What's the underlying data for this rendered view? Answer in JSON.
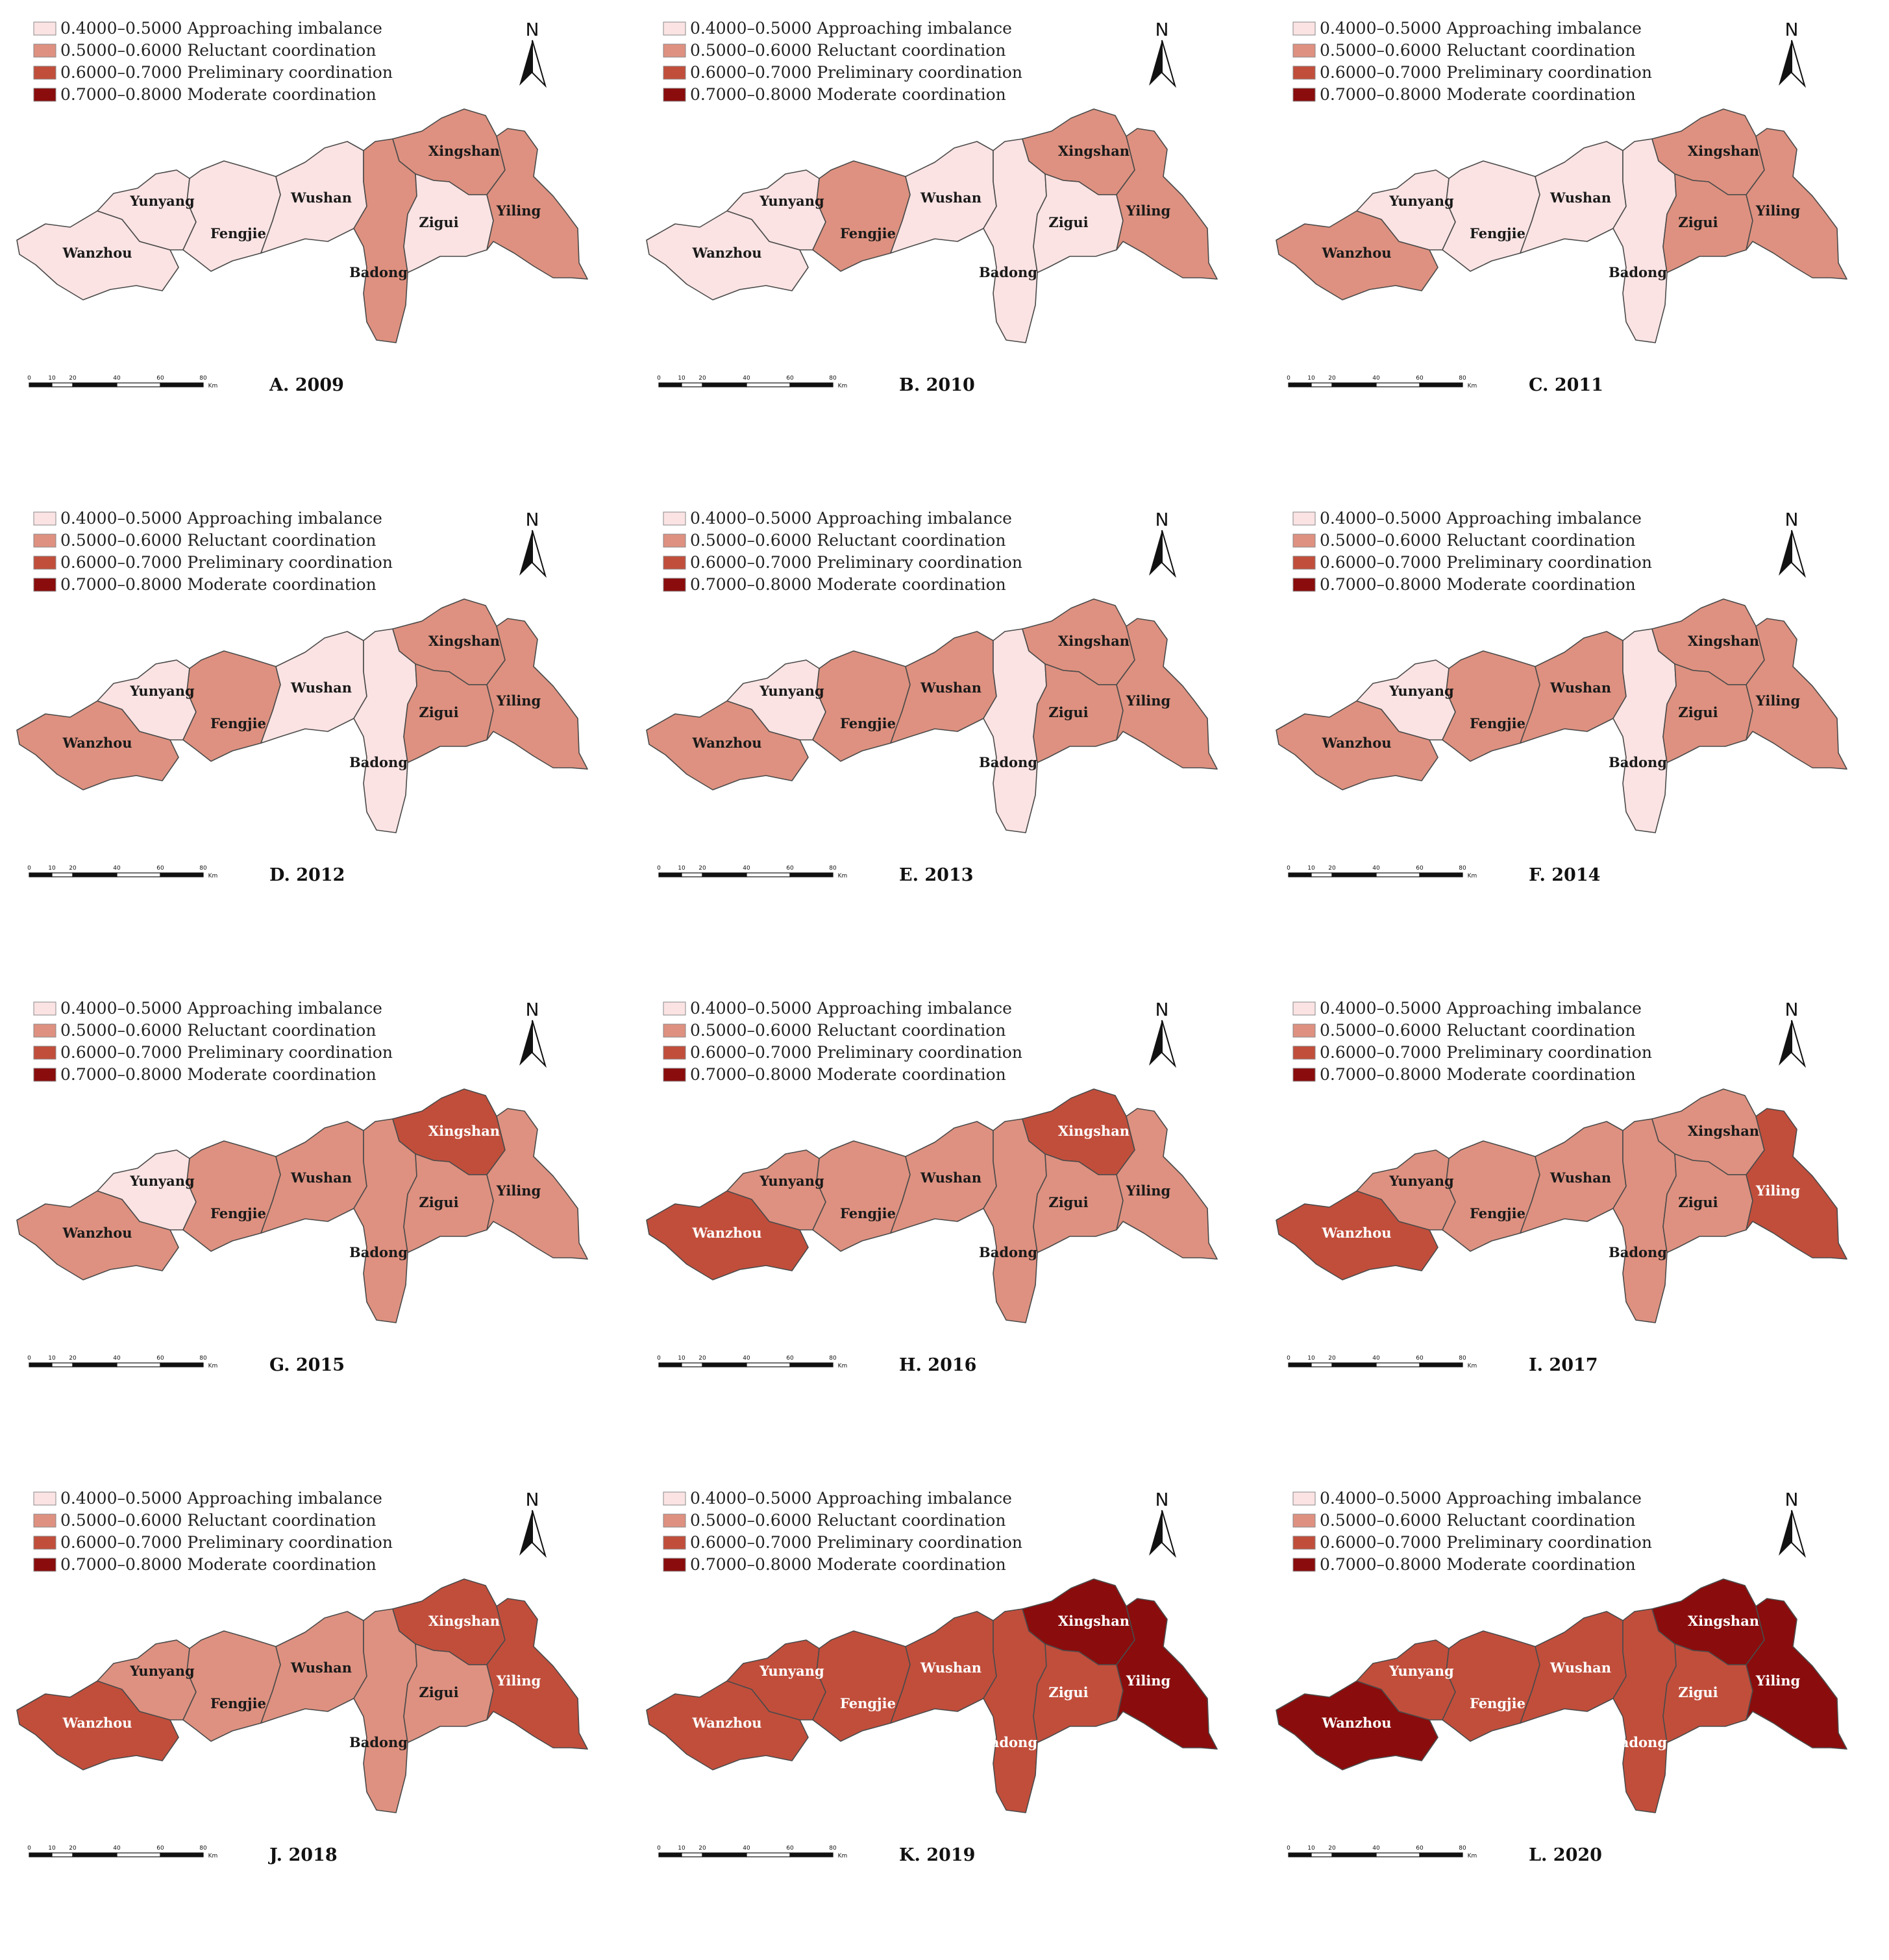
{
  "legend": [
    {
      "range": "0.4000–0.5000",
      "label": "Approaching imbalance",
      "color": "#fbe3e3"
    },
    {
      "range": "0.5000–0.6000",
      "label": "Reluctant coordination",
      "color": "#de9180"
    },
    {
      "range": "0.6000–0.7000",
      "label": "Preliminary coordination",
      "color": "#c14e3b"
    },
    {
      "range": "0.7000–0.8000",
      "label": "Moderate coordination",
      "color": "#8a0c0c"
    }
  ],
  "north_label": "N",
  "scale": {
    "ticks": [
      "0",
      "10",
      "20",
      "40",
      "60",
      "80"
    ],
    "unit": "Km"
  },
  "districts": [
    "Wanzhou",
    "Yunyang",
    "Fengjie",
    "Wushan",
    "Badong",
    "Xingshan",
    "Zigui",
    "Yiling"
  ],
  "panels": [
    {
      "title": "A. 2009",
      "levels": {
        "Wanzhou": 1,
        "Yunyang": 1,
        "Fengjie": 1,
        "Wushan": 1,
        "Badong": 2,
        "Xingshan": 2,
        "Zigui": 1,
        "Yiling": 2
      }
    },
    {
      "title": "B. 2010",
      "levels": {
        "Wanzhou": 1,
        "Yunyang": 1,
        "Fengjie": 2,
        "Wushan": 1,
        "Badong": 1,
        "Xingshan": 2,
        "Zigui": 1,
        "Yiling": 2
      }
    },
    {
      "title": "C. 2011",
      "levels": {
        "Wanzhou": 2,
        "Yunyang": 1,
        "Fengjie": 1,
        "Wushan": 1,
        "Badong": 1,
        "Xingshan": 2,
        "Zigui": 2,
        "Yiling": 2
      }
    },
    {
      "title": "D. 2012",
      "levels": {
        "Wanzhou": 2,
        "Yunyang": 1,
        "Fengjie": 2,
        "Wushan": 1,
        "Badong": 1,
        "Xingshan": 2,
        "Zigui": 2,
        "Yiling": 2
      }
    },
    {
      "title": "E. 2013",
      "levels": {
        "Wanzhou": 2,
        "Yunyang": 1,
        "Fengjie": 2,
        "Wushan": 2,
        "Badong": 1,
        "Xingshan": 2,
        "Zigui": 2,
        "Yiling": 2
      }
    },
    {
      "title": "F. 2014",
      "levels": {
        "Wanzhou": 2,
        "Yunyang": 1,
        "Fengjie": 2,
        "Wushan": 2,
        "Badong": 1,
        "Xingshan": 2,
        "Zigui": 2,
        "Yiling": 2
      }
    },
    {
      "title": "G. 2015",
      "levels": {
        "Wanzhou": 2,
        "Yunyang": 1,
        "Fengjie": 2,
        "Wushan": 2,
        "Badong": 2,
        "Xingshan": 3,
        "Zigui": 2,
        "Yiling": 2
      }
    },
    {
      "title": "H. 2016",
      "levels": {
        "Wanzhou": 3,
        "Yunyang": 2,
        "Fengjie": 2,
        "Wushan": 2,
        "Badong": 2,
        "Xingshan": 3,
        "Zigui": 2,
        "Yiling": 2
      }
    },
    {
      "title": "I. 2017",
      "levels": {
        "Wanzhou": 3,
        "Yunyang": 2,
        "Fengjie": 2,
        "Wushan": 2,
        "Badong": 2,
        "Xingshan": 2,
        "Zigui": 2,
        "Yiling": 3
      }
    },
    {
      "title": "J. 2018",
      "levels": {
        "Wanzhou": 3,
        "Yunyang": 2,
        "Fengjie": 2,
        "Wushan": 2,
        "Badong": 2,
        "Xingshan": 3,
        "Zigui": 2,
        "Yiling": 3
      }
    },
    {
      "title": "K. 2019",
      "levels": {
        "Wanzhou": 3,
        "Yunyang": 3,
        "Fengjie": 3,
        "Wushan": 3,
        "Badong": 3,
        "Xingshan": 4,
        "Zigui": 3,
        "Yiling": 4
      }
    },
    {
      "title": "L. 2020",
      "levels": {
        "Wanzhou": 4,
        "Yunyang": 3,
        "Fengjie": 3,
        "Wushan": 3,
        "Badong": 3,
        "Xingshan": 4,
        "Zigui": 3,
        "Yiling": 4
      }
    }
  ]
}
